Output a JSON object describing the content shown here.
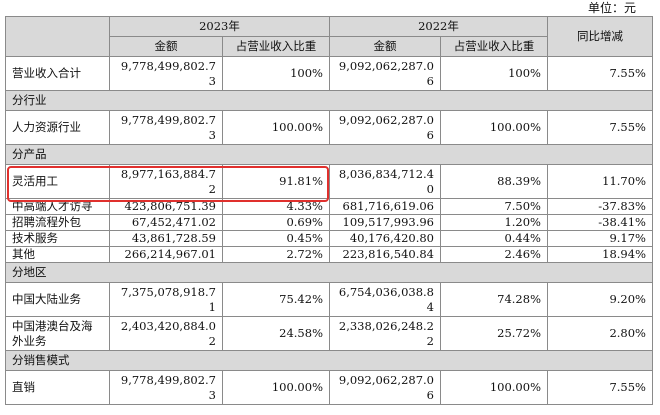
{
  "unit": "单位：元",
  "header": {
    "year_2023": "2023年",
    "year_2022": "2022年",
    "yoy": "同比增减",
    "amount": "金额",
    "share": "占营业收入比重"
  },
  "total": {
    "label": "营业收入合计",
    "amt23": "9,778,499,802.73",
    "pct23": "100%",
    "amt22": "9,092,062,287.06",
    "pct22": "100%",
    "yoy": "7.55%"
  },
  "sections": {
    "industry": "分行业",
    "product": "分产品",
    "region": "分地区",
    "sales": "分销售模式"
  },
  "industry_rows": [
    {
      "label": "人力资源行业",
      "amt23": "9,778,499,802.73",
      "pct23": "100.00%",
      "amt22": "9,092,062,287.06",
      "pct22": "100.00%",
      "yoy": "7.55%"
    }
  ],
  "product_rows": [
    {
      "label": "灵活用工",
      "amt23": "8,977,163,884.72",
      "pct23": "91.81%",
      "amt22": "8,036,834,712.40",
      "pct22": "88.39%",
      "yoy": "11.70%"
    },
    {
      "label": "中高端人才访寻",
      "amt23": "423,806,751.39",
      "pct23": "4.33%",
      "amt22": "681,716,619.06",
      "pct22": "7.50%",
      "yoy": "-37.83%"
    },
    {
      "label": "招聘流程外包",
      "amt23": "67,452,471.02",
      "pct23": "0.69%",
      "amt22": "109,517,993.96",
      "pct22": "1.20%",
      "yoy": "-38.41%"
    },
    {
      "label": "技术服务",
      "amt23": "43,861,728.59",
      "pct23": "0.45%",
      "amt22": "40,176,420.80",
      "pct22": "0.44%",
      "yoy": "9.17%"
    },
    {
      "label": "其他",
      "amt23": "266,214,967.01",
      "pct23": "2.72%",
      "amt22": "223,816,540.84",
      "pct22": "2.46%",
      "yoy": "18.94%"
    }
  ],
  "region_rows": [
    {
      "label": "中国大陆业务",
      "amt23": "7,375,078,918.71",
      "pct23": "75.42%",
      "amt22": "6,754,036,038.84",
      "pct22": "74.28%",
      "yoy": "9.20%"
    },
    {
      "label": "中国港澳台及海外业务",
      "amt23": "2,403,420,884.02",
      "pct23": "24.58%",
      "amt22": "2,338,026,248.22",
      "pct22": "25.72%",
      "yoy": "2.80%"
    }
  ],
  "sales_rows": [
    {
      "label": "直销",
      "amt23": "9,778,499,802.73",
      "pct23": "100.00%",
      "amt22": "9,092,062,287.06",
      "pct22": "100.00%",
      "yoy": "7.55%"
    }
  ],
  "colors": {
    "header_bg": "#d9d9d9",
    "highlight": "#e0302d",
    "border": "#8a8a8a"
  }
}
